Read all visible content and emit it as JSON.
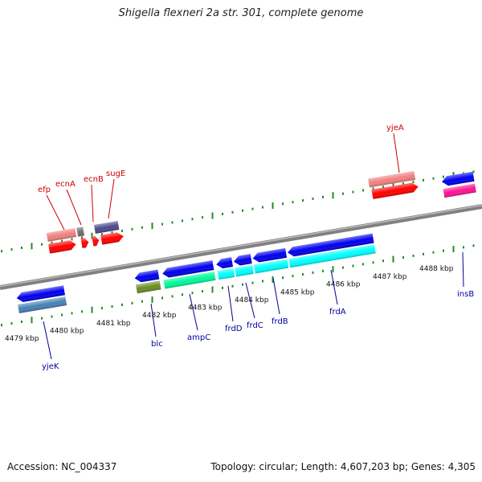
{
  "header": {
    "title": "Shigella flexneri 2a str. 301, complete genome"
  },
  "footer": {
    "accession": "Accession: NC_004337",
    "summary": "Topology: circular; Length: 4,607,203 bp; Genes: 4,305"
  },
  "colors": {
    "backbone": "#808080",
    "tick_plus": "#228b22",
    "tick_minus": "#228b22",
    "label_plus": "#cc0000",
    "label_minus": "#000099"
  },
  "scale_labels": [
    "4479 kbp",
    "4480 kbp",
    "4481 kbp",
    "4482 kbp",
    "4483 kbp",
    "4484 kbp",
    "4485 kbp",
    "4486 kbp",
    "4487 kbp",
    "4488 kbp"
  ],
  "gene_labels_plus": [
    "efp",
    "ecnA",
    "ecnB",
    "sugE",
    "yjeA"
  ],
  "gene_labels_minus": [
    "yjeK",
    "blc",
    "ampC",
    "frdD",
    "frdC",
    "frdB",
    "frdA",
    "insB"
  ]
}
